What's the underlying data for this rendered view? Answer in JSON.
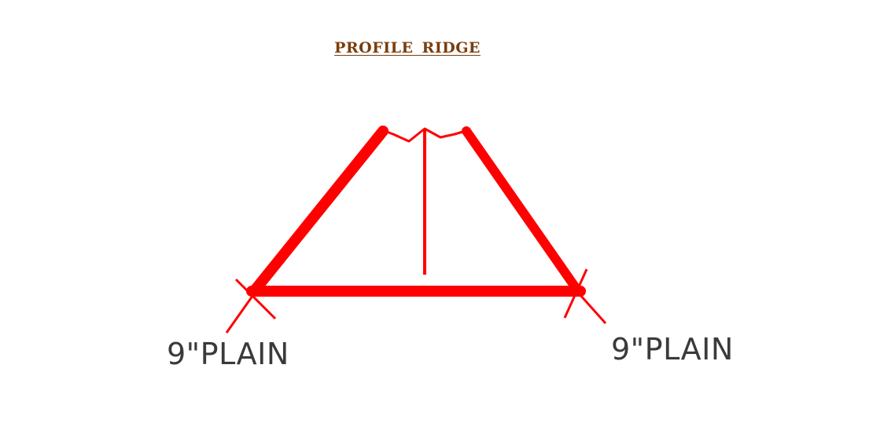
{
  "diagram": {
    "title": "PROFILE RIDGE",
    "left_label": "9\"PLAIN",
    "right_label": "9\"PLAIN",
    "stroke_color": "#ff0000",
    "title_color": "#7a3d0c",
    "label_color": "#3a3a3a"
  }
}
